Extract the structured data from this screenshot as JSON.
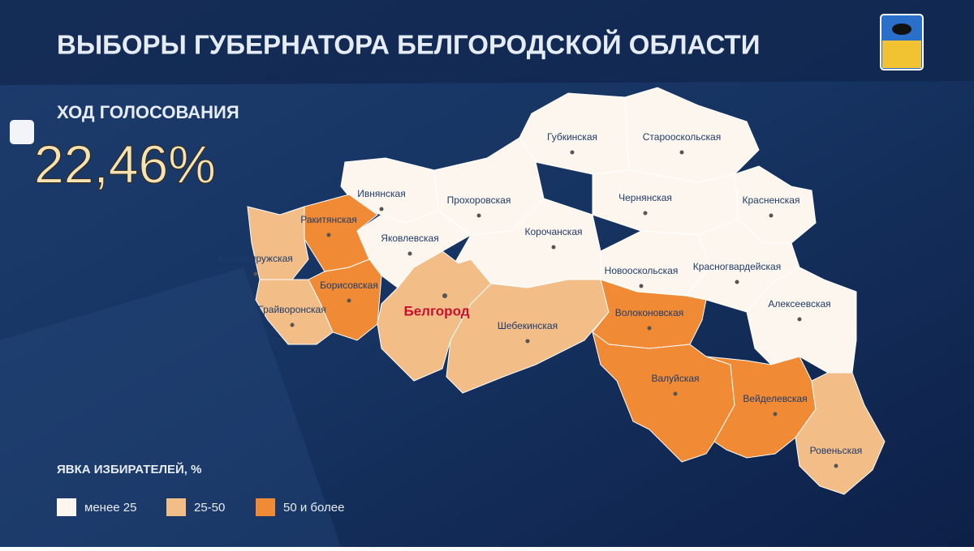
{
  "header": {
    "title": "ВЫБОРЫ ГУБЕРНАТОРА БЕЛГОРОДСКОЙ ОБЛАСТИ"
  },
  "turnout": {
    "label": "ХОД ГОЛОСОВАНИЯ",
    "value": "22,46%"
  },
  "legend": {
    "title": "ЯВКА ИЗБИРАТЕЛЕЙ, %",
    "items": [
      {
        "label": "менее 25",
        "color": "#fdf6ee"
      },
      {
        "label": "25-50",
        "color": "#f2bd87"
      },
      {
        "label": "50 и более",
        "color": "#f08a35"
      }
    ]
  },
  "map": {
    "capital": "Белгород",
    "regions": [
      {
        "name": "Губкинская",
        "legend_item": 0
      },
      {
        "name": "Старооскольская",
        "legend_item": 0
      },
      {
        "name": "Ивнянская",
        "legend_item": 0
      },
      {
        "name": "Прохоровская",
        "legend_item": 0
      },
      {
        "name": "Чернянская",
        "legend_item": 0
      },
      {
        "name": "Красненская",
        "legend_item": 0
      },
      {
        "name": "Ракитянская",
        "legend_item": 2
      },
      {
        "name": "Краснояружская",
        "legend_item": 1
      },
      {
        "name": "Яковлевская",
        "legend_item": 0
      },
      {
        "name": "Корочанская",
        "legend_item": 0
      },
      {
        "name": "Новооскольская",
        "legend_item": 0
      },
      {
        "name": "Красногвардейская",
        "legend_item": 0
      },
      {
        "name": "Борисовская",
        "legend_item": 2
      },
      {
        "name": "Грайворонская",
        "legend_item": 1
      },
      {
        "name": "Шебекинская",
        "legend_item": 1
      },
      {
        "name": "Алексеевская",
        "legend_item": 0
      },
      {
        "name": "Волоконовская",
        "legend_item": 2
      },
      {
        "name": "Валуйская",
        "legend_item": 2
      },
      {
        "name": "Вейделевская",
        "legend_item": 2
      },
      {
        "name": "Ровеньская",
        "legend_item": 1
      }
    ],
    "capital_legend_item": 1
  }
}
